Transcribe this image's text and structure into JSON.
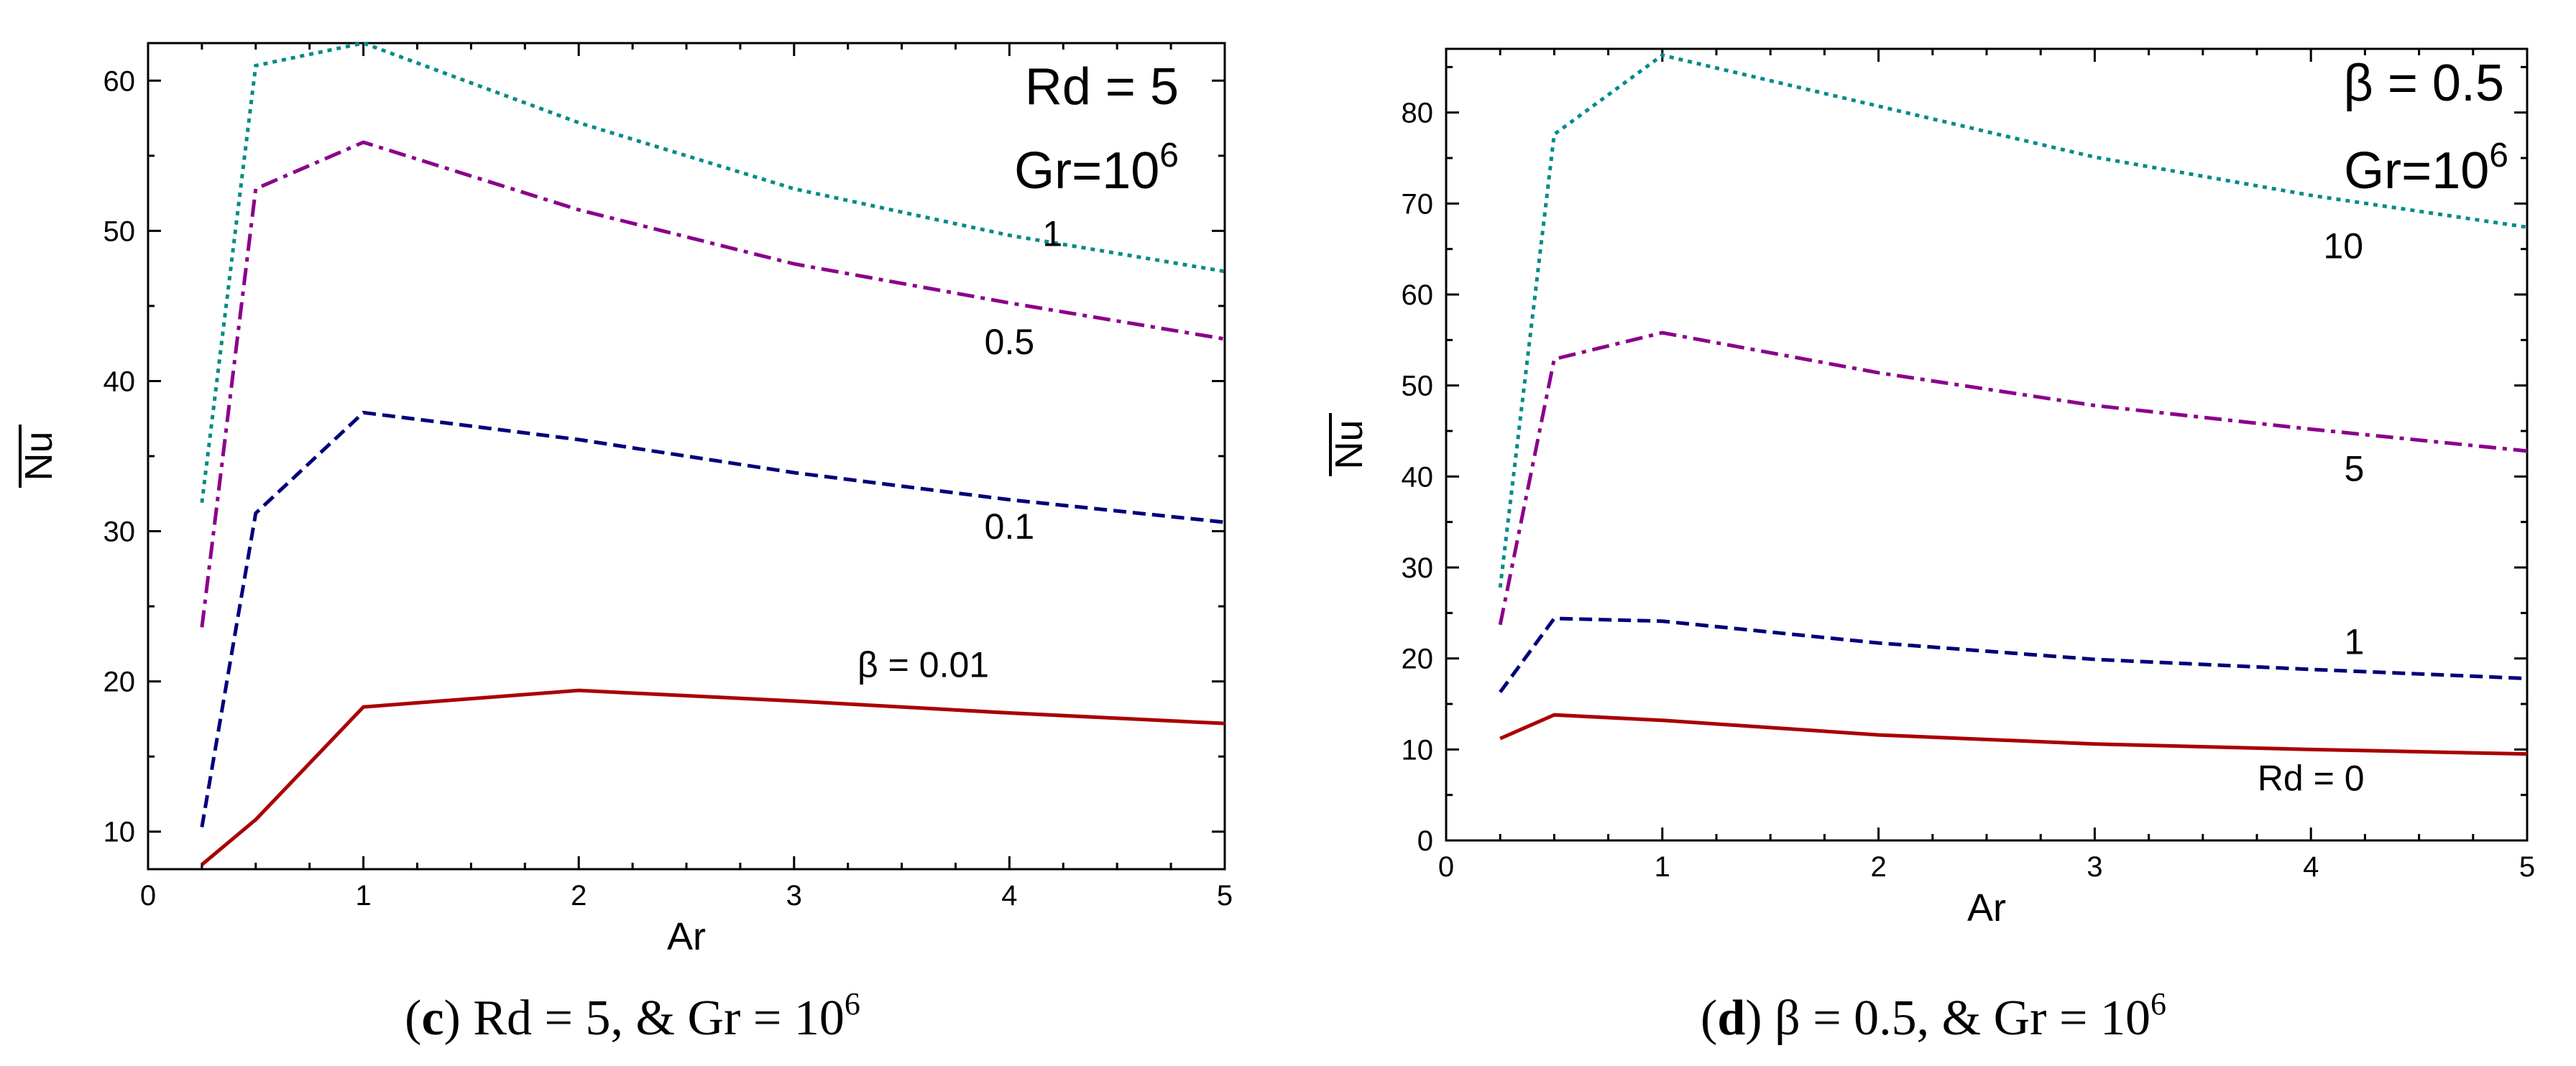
{
  "chart_data": [
    {
      "type": "line",
      "panel": "c",
      "caption_letter": "c",
      "caption_text": " Rd = 5, & Gr = 10",
      "caption_sup": "6",
      "annotation_line1": "Rd = 5",
      "annotation_line2_base": "Gr=10",
      "annotation_line2_sup": "6",
      "xlabel": "Ar",
      "ylabel": "Nu",
      "xlim": [
        0,
        5
      ],
      "ylim": [
        7.5,
        62.5
      ],
      "xticks": [
        0,
        1,
        2,
        3,
        4,
        5
      ],
      "yticks": [
        10,
        20,
        30,
        40,
        50,
        60
      ],
      "grid": false,
      "series": [
        {
          "name": "β = 0.01",
          "label": "β = 0.01",
          "color": "#aa0000",
          "dash": "solid",
          "x": [
            0.25,
            0.5,
            1,
            2,
            3,
            4,
            5
          ],
          "values": [
            7.8,
            10.8,
            18.3,
            19.4,
            18.7,
            17.9,
            17.2
          ],
          "label_at": [
            3.6,
            20.3
          ]
        },
        {
          "name": "0.1",
          "label": "0.1",
          "color": "#00007a",
          "dash": "dashed",
          "x": [
            0.25,
            0.5,
            1,
            2,
            3,
            4,
            5
          ],
          "values": [
            10.3,
            31.2,
            37.9,
            36.1,
            33.9,
            32.1,
            30.6
          ],
          "label_at": [
            4.0,
            29.5
          ]
        },
        {
          "name": "0.5",
          "label": "0.5",
          "color": "#8b008b",
          "dash": "dashdot",
          "x": [
            0.25,
            0.5,
            1,
            2,
            3,
            4,
            5
          ],
          "values": [
            23.6,
            52.8,
            55.9,
            51.4,
            47.8,
            45.2,
            42.8
          ],
          "label_at": [
            4.0,
            41.8
          ]
        },
        {
          "name": "1",
          "label": "1",
          "color": "#008b8b",
          "dash": "dotted",
          "x": [
            0.25,
            0.5,
            1,
            2,
            3,
            4,
            5
          ],
          "values": [
            31.9,
            61.0,
            62.5,
            57.2,
            52.8,
            49.7,
            47.3
          ],
          "label_at": [
            4.2,
            49.0
          ]
        }
      ]
    },
    {
      "type": "line",
      "panel": "d",
      "caption_letter": "d",
      "caption_text": " β = 0.5, & Gr = 10",
      "caption_sup": "6",
      "annotation_line1": "β = 0.5",
      "annotation_line2_base": "Gr=10",
      "annotation_line2_sup": "6",
      "xlabel": "Ar",
      "ylabel": "Nu",
      "xlim": [
        0,
        5
      ],
      "ylim": [
        0,
        87
      ],
      "xticks": [
        0,
        1,
        2,
        3,
        4,
        5
      ],
      "yticks": [
        0,
        10,
        20,
        30,
        40,
        50,
        60,
        70,
        80
      ],
      "grid": false,
      "series": [
        {
          "name": "Rd = 0",
          "label": "Rd = 0",
          "color": "#aa0000",
          "dash": "solid",
          "x": [
            0.25,
            0.5,
            1,
            2,
            3,
            4,
            5
          ],
          "values": [
            11.2,
            13.8,
            13.2,
            11.6,
            10.6,
            10.0,
            9.5
          ],
          "label_at": [
            4.0,
            5.5
          ]
        },
        {
          "name": "1",
          "label": "1",
          "color": "#00007a",
          "dash": "dashed",
          "x": [
            0.25,
            0.5,
            1,
            2,
            3,
            4,
            5
          ],
          "values": [
            16.3,
            24.4,
            24.1,
            21.7,
            19.9,
            18.8,
            17.8
          ],
          "label_at": [
            4.2,
            20.5
          ]
        },
        {
          "name": "5",
          "label": "5",
          "color": "#8b008b",
          "dash": "dashdot",
          "x": [
            0.25,
            0.5,
            1,
            2,
            3,
            4,
            5
          ],
          "values": [
            23.7,
            52.9,
            55.8,
            51.4,
            47.8,
            45.2,
            42.8
          ],
          "label_at": [
            4.2,
            39.5
          ]
        },
        {
          "name": "10",
          "label": "10",
          "color": "#008b8b",
          "dash": "dotted",
          "x": [
            0.25,
            0.5,
            1,
            2,
            3,
            4,
            5
          ],
          "values": [
            27.8,
            77.6,
            86.3,
            80.7,
            75.1,
            70.9,
            67.4
          ],
          "label_at": [
            4.15,
            64.0
          ]
        }
      ]
    }
  ]
}
